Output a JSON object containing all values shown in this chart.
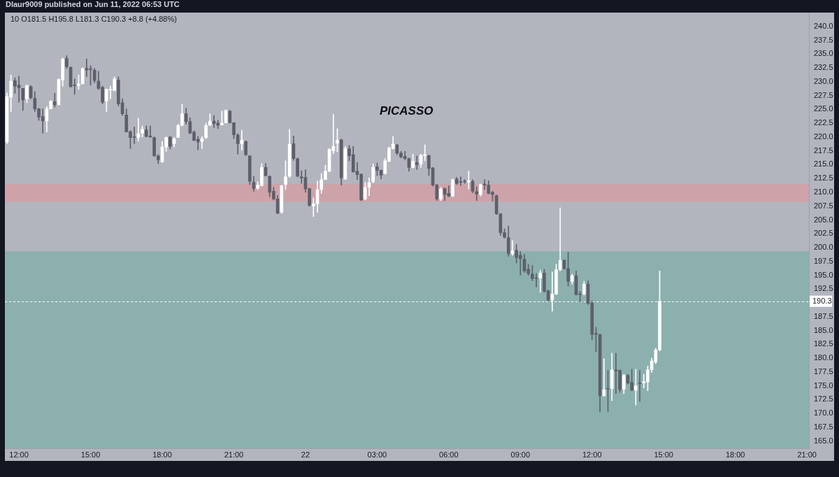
{
  "chart_data": {
    "type": "candlestick",
    "title": "Dlaur9009 published on Jun 11, 2022 06:53 UTC",
    "subtitle": "10 O181.5 H195.8 L181.3 C190.3 +8.8 (+4.88%)",
    "annotations": [
      "PICASSO"
    ],
    "categories": [
      null,
      null,
      null,
      "12:00",
      null,
      null,
      null,
      null,
      null,
      null,
      null,
      null,
      null,
      null,
      null,
      null,
      null,
      null,
      null,
      null,
      null,
      "15:00",
      null,
      null,
      null,
      null,
      null,
      null,
      null,
      null,
      null,
      null,
      null,
      null,
      null,
      null,
      null,
      null,
      null,
      "18:00",
      null,
      null,
      null,
      null,
      null,
      null,
      null,
      null,
      null,
      null,
      null,
      null,
      null,
      null,
      null,
      null,
      null,
      "21:00",
      null,
      null,
      null,
      null,
      null,
      null,
      null,
      null,
      null,
      null,
      null,
      null,
      null,
      null,
      null,
      null,
      null,
      "22",
      null,
      null,
      null,
      null,
      null,
      null,
      null,
      null,
      null,
      null,
      null,
      null,
      null,
      null,
      null,
      null,
      null,
      "03:00",
      null,
      null,
      null,
      null,
      null,
      null,
      null,
      null,
      null,
      null,
      null,
      null,
      null,
      null,
      null,
      null,
      null,
      "06:00",
      null,
      null,
      null,
      null,
      null,
      null,
      null,
      null,
      null,
      null,
      null,
      null,
      null,
      null,
      null,
      null,
      null,
      "09:00",
      null,
      null,
      null,
      null,
      null,
      null,
      null,
      null,
      null,
      null,
      null,
      null,
      null,
      null,
      null,
      null,
      null,
      "12:00",
      null,
      null,
      null,
      null,
      null,
      null,
      null,
      null,
      null,
      null,
      null,
      null,
      null,
      null,
      null,
      null,
      null,
      "15:00",
      null,
      null,
      null,
      null,
      null,
      null,
      null,
      null,
      null,
      null,
      null,
      null,
      null,
      null,
      null,
      null,
      null,
      "18:00",
      null,
      null,
      null,
      null,
      null,
      null,
      null,
      null,
      null,
      null,
      null,
      null,
      null,
      null,
      null,
      null,
      null,
      "21:00"
    ],
    "ylim": [
      163.7,
      242.5
    ],
    "yticks": [
      {
        "value": 165,
        "label": "165.0"
      },
      167.5,
      {
        "value": 170,
        "label": "170.0"
      },
      172.5,
      {
        "value": 175,
        "label": "175.0"
      },
      177.5,
      {
        "value": 180,
        "label": "180.0"
      },
      182.5,
      {
        "value": 185,
        "label": "185.0"
      },
      187.5,
      192.5,
      {
        "value": 195,
        "label": "195.0"
      },
      197.5,
      {
        "value": 200,
        "label": "200.0"
      },
      202.5,
      {
        "value": 205,
        "label": "205.0"
      },
      207.5,
      {
        "value": 210,
        "label": "210.0"
      },
      212.5,
      {
        "value": 215,
        "label": "215.0"
      },
      217.5,
      {
        "value": 220,
        "label": "220.0"
      },
      222.5,
      {
        "value": 225,
        "label": "225.0"
      },
      227.5,
      {
        "value": 230,
        "label": "230.0"
      },
      232.5,
      {
        "value": 235,
        "label": "235.0"
      },
      237.5,
      {
        "value": 240,
        "label": "240.0"
      }
    ],
    "bands": [
      {
        "axis": "y",
        "from": 163.7,
        "to": 199.3,
        "color": "#8cb0ae"
      },
      {
        "axis": "y",
        "from": 208.3,
        "to": 211.5,
        "color": "#cda3a9"
      }
    ],
    "ref_lines": [
      {
        "axis": "y",
        "value": 190.3,
        "label": "190.3",
        "color": "#ffffff",
        "line_style": "dashed"
      }
    ],
    "grid": false,
    "ohlc": [
      [
        219.1,
        228.0,
        218.8,
        227.3
      ],
      [
        227.2,
        231.2,
        224.6,
        230.1
      ],
      [
        230.2,
        230.7,
        227.9,
        229.2
      ],
      [
        229.4,
        231.0,
        226.3,
        228.9
      ],
      [
        228.8,
        228.8,
        224.8,
        226.7
      ],
      [
        226.9,
        229.4,
        226.2,
        229.3
      ],
      [
        229.1,
        229.3,
        226.9,
        227.1
      ],
      [
        227.0,
        228.2,
        224.6,
        225.1
      ],
      [
        225.1,
        225.2,
        223.0,
        223.6
      ],
      [
        223.7,
        225.1,
        220.7,
        222.9
      ],
      [
        222.9,
        225.5,
        220.9,
        225.1
      ],
      [
        225.1,
        226.6,
        225.1,
        226.5
      ],
      [
        226.4,
        227.9,
        225.4,
        225.8
      ],
      [
        225.8,
        230.5,
        225.8,
        230.4
      ],
      [
        230.3,
        234.3,
        229.2,
        234.1
      ],
      [
        234.2,
        234.7,
        232.4,
        232.7
      ],
      [
        232.6,
        232.7,
        229.0,
        229.1
      ],
      [
        229.4,
        230.5,
        227.7,
        229.3
      ],
      [
        229.3,
        231.2,
        228.6,
        229.6
      ],
      [
        229.6,
        232.5,
        229.6,
        232.4
      ],
      [
        232.4,
        234.1,
        230.9,
        232.1
      ],
      [
        232.3,
        232.9,
        229.4,
        232.2
      ],
      [
        232.1,
        232.4,
        229.8,
        230.2
      ],
      [
        230.1,
        231.9,
        228.6,
        228.8
      ],
      [
        229.0,
        229.2,
        226.0,
        226.3
      ],
      [
        226.5,
        228.7,
        224.6,
        228.6
      ],
      [
        228.5,
        229.2,
        226.9,
        228.6
      ],
      [
        228.4,
        230.9,
        228.4,
        230.5
      ],
      [
        230.3,
        230.9,
        225.6,
        226.0
      ],
      [
        226.2,
        226.9,
        223.9,
        224.2
      ],
      [
        224.0,
        225.1,
        220.9,
        220.9
      ],
      [
        221.0,
        221.1,
        217.9,
        219.9
      ],
      [
        220.0,
        221.8,
        218.8,
        219.9
      ],
      [
        219.9,
        223.4,
        219.3,
        220.6
      ],
      [
        220.7,
        222.0,
        220.0,
        221.4
      ],
      [
        221.3,
        222.0,
        220.0,
        220.1
      ],
      [
        220.2,
        222.0,
        219.9,
        220.0
      ],
      [
        219.9,
        220.0,
        216.5,
        216.6
      ],
      [
        216.6,
        216.8,
        215.2,
        215.9
      ],
      [
        215.5,
        219.2,
        215.4,
        218.2
      ],
      [
        218.2,
        220.0,
        217.4,
        219.9
      ],
      [
        220.0,
        220.1,
        217.8,
        218.3
      ],
      [
        218.8,
        219.9,
        218.2,
        219.7
      ],
      [
        219.9,
        222.3,
        219.9,
        222.1
      ],
      [
        222.1,
        225.9,
        222.0,
        224.2
      ],
      [
        224.2,
        225.2,
        222.3,
        222.8
      ],
      [
        222.8,
        223.5,
        220.6,
        220.7
      ],
      [
        220.9,
        221.1,
        219.3,
        219.4
      ],
      [
        219.6,
        220.1,
        217.7,
        219.1
      ],
      [
        219.2,
        220.1,
        217.9,
        219.7
      ],
      [
        219.9,
        222.5,
        219.7,
        222.1
      ],
      [
        222.1,
        224.2,
        222.1,
        222.9
      ],
      [
        222.9,
        223.9,
        221.7,
        222.4
      ],
      [
        222.5,
        223.0,
        221.5,
        222.1
      ],
      [
        222.2,
        224.7,
        222.1,
        222.5
      ],
      [
        222.6,
        224.9,
        222.5,
        224.8
      ],
      [
        224.7,
        224.8,
        222.5,
        222.6
      ],
      [
        222.6,
        222.6,
        219.7,
        220.4
      ],
      [
        220.4,
        220.6,
        216.9,
        218.8
      ],
      [
        218.8,
        221.2,
        217.6,
        219.4
      ],
      [
        219.2,
        219.3,
        216.6,
        216.8
      ],
      [
        216.6,
        216.6,
        211.4,
        212.0
      ],
      [
        211.8,
        212.9,
        210.2,
        210.7
      ],
      [
        210.7,
        211.9,
        210.5,
        211.3
      ],
      [
        211.2,
        215.2,
        211.1,
        214.5
      ],
      [
        214.5,
        215.2,
        212.9,
        213.0
      ],
      [
        212.9,
        213.0,
        209.2,
        210.0
      ],
      [
        210.2,
        210.9,
        208.6,
        208.8
      ],
      [
        208.8,
        209.4,
        206.1,
        206.2
      ],
      [
        206.4,
        211.3,
        206.2,
        211.2
      ],
      [
        211.4,
        215.7,
        210.5,
        212.8
      ],
      [
        212.9,
        221.4,
        212.7,
        218.7
      ],
      [
        218.8,
        220.2,
        215.8,
        216.1
      ],
      [
        216.1,
        216.2,
        212.8,
        212.9
      ],
      [
        212.8,
        213.9,
        211.6,
        212.6
      ],
      [
        212.7,
        214.1,
        210.0,
        210.6
      ],
      [
        210.7,
        210.7,
        207.5,
        207.6
      ],
      [
        207.5,
        209.0,
        205.6,
        207.9
      ],
      [
        207.9,
        212.0,
        206.4,
        210.5
      ],
      [
        210.5,
        213.4,
        209.8,
        212.3
      ],
      [
        212.3,
        214.9,
        212.3,
        213.8
      ],
      [
        213.8,
        217.9,
        213.7,
        217.8
      ],
      [
        217.5,
        224.1,
        217.0,
        218.3
      ],
      [
        218.9,
        221.5,
        217.3,
        219.4
      ],
      [
        219.5,
        219.6,
        211.3,
        212.6
      ],
      [
        212.4,
        218.3,
        212.3,
        217.9
      ],
      [
        217.9,
        218.5,
        215.7,
        216.6
      ],
      [
        216.8,
        218.3,
        213.6,
        213.7
      ],
      [
        213.8,
        215.4,
        212.3,
        213.2
      ],
      [
        213.3,
        213.3,
        208.5,
        208.6
      ],
      [
        208.8,
        211.8,
        208.6,
        210.9
      ],
      [
        210.9,
        212.6,
        209.4,
        211.7
      ],
      [
        211.9,
        215.1,
        211.7,
        214.5
      ],
      [
        214.6,
        215.3,
        213.0,
        214.0
      ],
      [
        214.0,
        214.0,
        212.4,
        213.1
      ],
      [
        213.4,
        216.1,
        213.3,
        215.7
      ],
      [
        215.6,
        218.2,
        215.5,
        218.0
      ],
      [
        217.9,
        220.1,
        217.8,
        218.7
      ],
      [
        218.6,
        218.7,
        216.8,
        217.1
      ],
      [
        217.1,
        217.4,
        216.2,
        216.4
      ],
      [
        216.5,
        217.4,
        215.9,
        216.1
      ],
      [
        216.1,
        216.2,
        213.8,
        214.5
      ],
      [
        214.5,
        216.9,
        214.4,
        215.6
      ],
      [
        215.4,
        216.6,
        214.1,
        215.0
      ],
      [
        215.1,
        216.9,
        214.5,
        216.7
      ],
      [
        216.6,
        218.6,
        215.7,
        216.8
      ],
      [
        216.7,
        216.7,
        213.0,
        214.3
      ],
      [
        214.4,
        214.5,
        211.1,
        211.3
      ],
      [
        211.3,
        211.5,
        208.5,
        208.8
      ],
      [
        208.8,
        210.9,
        208.5,
        210.6
      ],
      [
        210.7,
        210.8,
        208.5,
        209.6
      ],
      [
        209.8,
        211.2,
        209.2,
        209.3
      ],
      [
        209.3,
        212.4,
        209.2,
        212.3
      ],
      [
        212.4,
        212.7,
        211.4,
        211.6
      ],
      [
        211.9,
        212.8,
        211.2,
        211.8
      ],
      [
        212.0,
        212.3,
        211.6,
        211.9
      ],
      [
        211.9,
        213.8,
        210.6,
        212.1
      ],
      [
        212.0,
        212.3,
        209.9,
        210.2
      ],
      [
        210.1,
        211.0,
        208.5,
        209.7
      ],
      [
        209.6,
        211.5,
        209.3,
        211.4
      ],
      [
        211.5,
        212.3,
        210.5,
        211.3
      ],
      [
        211.3,
        212.1,
        209.7,
        209.8
      ],
      [
        210.0,
        210.2,
        208.4,
        209.6
      ],
      [
        209.4,
        209.5,
        206.0,
        206.1
      ],
      [
        206.1,
        206.2,
        202.2,
        202.7
      ],
      [
        202.7,
        203.4,
        201.7,
        201.9
      ],
      [
        201.8,
        203.9,
        198.4,
        198.9
      ],
      [
        198.9,
        201.3,
        198.6,
        199.4
      ],
      [
        199.5,
        200.6,
        197.2,
        198.2
      ],
      [
        198.6,
        199.3,
        195.0,
        198.0
      ],
      [
        197.9,
        198.8,
        195.5,
        195.8
      ],
      [
        196.1,
        197.0,
        195.0,
        195.3
      ],
      [
        195.2,
        196.8,
        194.0,
        194.4
      ],
      [
        194.5,
        195.3,
        192.9,
        194.4
      ],
      [
        194.5,
        195.9,
        191.9,
        195.4
      ],
      [
        195.4,
        196.1,
        191.9,
        192.1
      ],
      [
        192.2,
        192.3,
        190.3,
        190.5
      ],
      [
        190.5,
        195.6,
        188.5,
        191.6
      ],
      [
        191.6,
        197.0,
        191.5,
        196.0
      ],
      [
        196.0,
        207.2,
        195.8,
        197.7
      ],
      [
        197.7,
        197.8,
        196.1,
        196.2
      ],
      [
        196.2,
        199.2,
        193.0,
        193.9
      ],
      [
        193.9,
        195.2,
        193.4,
        194.9
      ],
      [
        194.9,
        195.8,
        191.4,
        191.5
      ],
      [
        191.6,
        192.1,
        190.2,
        191.5
      ],
      [
        191.6,
        193.9,
        191.4,
        193.4
      ],
      [
        193.4,
        194.0,
        189.7,
        189.9
      ],
      [
        190.0,
        190.4,
        183.3,
        184.3
      ],
      [
        184.5,
        185.6,
        181.2,
        184.3
      ],
      [
        184.3,
        184.3,
        170.3,
        173.2
      ],
      [
        173.2,
        179.9,
        173.1,
        174.3
      ],
      [
        174.5,
        177.8,
        170.3,
        174.4
      ],
      [
        174.5,
        180.9,
        172.3,
        177.9
      ],
      [
        177.9,
        180.9,
        173.6,
        177.7
      ],
      [
        177.8,
        177.9,
        173.8,
        174.3
      ],
      [
        174.4,
        177.1,
        173.6,
        176.9
      ],
      [
        176.9,
        177.1,
        175.3,
        175.5
      ],
      [
        175.6,
        178.0,
        174.1,
        174.2
      ],
      [
        174.2,
        178.0,
        171.5,
        175.0
      ],
      [
        175.5,
        177.8,
        172.2,
        175.4
      ],
      [
        175.5,
        177.1,
        174.6,
        175.8
      ],
      [
        175.7,
        178.6,
        174.1,
        177.9
      ],
      [
        177.9,
        180.0,
        177.4,
        179.5
      ],
      [
        179.3,
        181.8,
        179.0,
        181.5
      ],
      [
        181.5,
        195.8,
        181.3,
        190.3
      ],
      null,
      null,
      null,
      null,
      null,
      null,
      null,
      null,
      null,
      null,
      null,
      null,
      null,
      null,
      null,
      null,
      null,
      null,
      null,
      null,
      null,
      null,
      null,
      null,
      null,
      null,
      null,
      null,
      null,
      null,
      null,
      null,
      null,
      null,
      null,
      null,
      null
    ],
    "colors": [
      "#ffffff",
      "#ffffff",
      "#5d606b",
      "#5d606b",
      "#5d606b",
      "#ffffff",
      "#5d606b",
      "#5d606b",
      "#5d606b",
      "#5d606b",
      "#ffffff",
      "#ffffff",
      "#5d606b",
      "#ffffff",
      "#ffffff",
      "#5d606b",
      "#5d606b",
      "#5d606b",
      "#ffffff",
      "#ffffff",
      "#5d606b",
      "#5d606b",
      "#5d606b",
      "#5d606b",
      "#5d606b",
      "#ffffff",
      "#ffffff",
      "#ffffff",
      "#5d606b",
      "#5d606b",
      "#5d606b",
      "#5d606b",
      "#5d606b",
      "#ffffff",
      "#ffffff",
      "#5d606b",
      "#5d606b",
      "#5d606b",
      "#5d606b",
      "#ffffff",
      "#ffffff",
      "#5d606b",
      "#ffffff",
      "#ffffff",
      "#ffffff",
      "#5d606b",
      "#5d606b",
      "#5d606b",
      "#5d606b",
      "#ffffff",
      "#ffffff",
      "#ffffff",
      "#5d606b",
      "#5d606b",
      "#ffffff",
      "#ffffff",
      "#5d606b",
      "#5d606b",
      "#5d606b",
      "#ffffff",
      "#5d606b",
      "#5d606b",
      "#5d606b",
      "#ffffff",
      "#ffffff",
      "#5d606b",
      "#5d606b",
      "#5d606b",
      "#5d606b",
      "#ffffff",
      "#ffffff",
      "#ffffff",
      "#5d606b",
      "#5d606b",
      "#5d606b",
      "#5d606b",
      "#5d606b",
      "#ffffff",
      "#ffffff",
      "#ffffff",
      "#ffffff",
      "#ffffff",
      "#ffffff",
      "#ffffff",
      "#5d606b",
      "#ffffff",
      "#5d606b",
      "#5d606b",
      "#5d606b",
      "#5d606b",
      "#ffffff",
      "#ffffff",
      "#ffffff",
      "#5d606b",
      "#5d606b",
      "#ffffff",
      "#ffffff",
      "#ffffff",
      "#5d606b",
      "#5d606b",
      "#5d606b",
      "#5d606b",
      "#ffffff",
      "#5d606b",
      "#ffffff",
      "#ffffff",
      "#5d606b",
      "#5d606b",
      "#5d606b",
      "#ffffff",
      "#5d606b",
      "#5d606b",
      "#ffffff",
      "#5d606b",
      "#5d606b",
      "#5d606b",
      "#ffffff",
      "#5d606b",
      "#5d606b",
      "#ffffff",
      "#5d606b",
      "#5d606b",
      "#5d606b",
      "#5d606b",
      "#5d606b",
      "#5d606b",
      "#5d606b",
      "#ffffff",
      "#5d606b",
      "#5d606b",
      "#5d606b",
      "#5d606b",
      "#5d606b",
      "#5d606b",
      "#ffffff",
      "#5d606b",
      "#5d606b",
      "#ffffff",
      "#ffffff",
      "#ffffff",
      "#5d606b",
      "#5d606b",
      "#ffffff",
      "#5d606b",
      "#5d606b",
      "#ffffff",
      "#5d606b",
      "#5d606b",
      "#5d606b",
      "#5d606b",
      "#ffffff",
      "#5d606b",
      "#ffffff",
      "#5d606b",
      "#5d606b",
      "#ffffff",
      "#5d606b",
      "#5d606b",
      "#ffffff",
      "#5d606b",
      "#ffffff",
      "#ffffff",
      "#ffffff",
      "#ffffff",
      "#ffffff",
      null,
      null,
      null,
      null,
      null,
      null,
      null,
      null,
      null,
      null,
      null,
      null,
      null,
      null,
      null,
      null,
      null,
      null,
      null,
      null,
      null,
      null,
      null,
      null,
      null,
      null,
      null,
      null,
      null,
      null,
      null,
      null,
      null,
      null,
      null,
      null,
      null
    ]
  }
}
